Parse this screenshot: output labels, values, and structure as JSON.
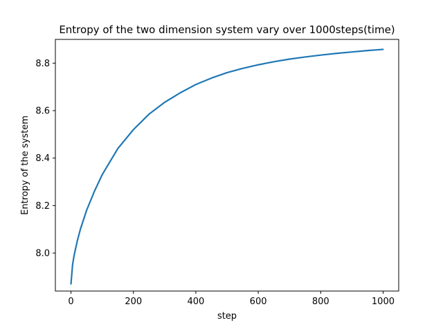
{
  "chart_data": {
    "type": "line",
    "title": "Entropy of the two dimension system vary over 1000steps(time)",
    "xlabel": "step",
    "ylabel": "Entropy of the system",
    "xlim": [
      -50,
      1050
    ],
    "ylim": [
      7.84,
      8.9
    ],
    "xticks": [
      0,
      200,
      400,
      600,
      800,
      1000
    ],
    "yticks": [
      8.0,
      8.2,
      8.4,
      8.6,
      8.8
    ],
    "ytick_labels": [
      "8.0",
      "8.2",
      "8.4",
      "8.6",
      "8.8"
    ],
    "grid": false,
    "legend": "none",
    "series": [
      {
        "color": "#1f77b4",
        "x": [
          0,
          5,
          10,
          20,
          30,
          50,
          75,
          100,
          150,
          200,
          250,
          300,
          350,
          400,
          450,
          500,
          550,
          600,
          650,
          700,
          750,
          800,
          850,
          900,
          950,
          1000
        ],
        "y": [
          7.87,
          7.95,
          7.99,
          8.05,
          8.1,
          8.18,
          8.26,
          8.33,
          8.44,
          8.52,
          8.585,
          8.635,
          8.675,
          8.71,
          8.737,
          8.76,
          8.778,
          8.793,
          8.806,
          8.817,
          8.826,
          8.834,
          8.841,
          8.847,
          8.853,
          8.858
        ]
      }
    ]
  }
}
